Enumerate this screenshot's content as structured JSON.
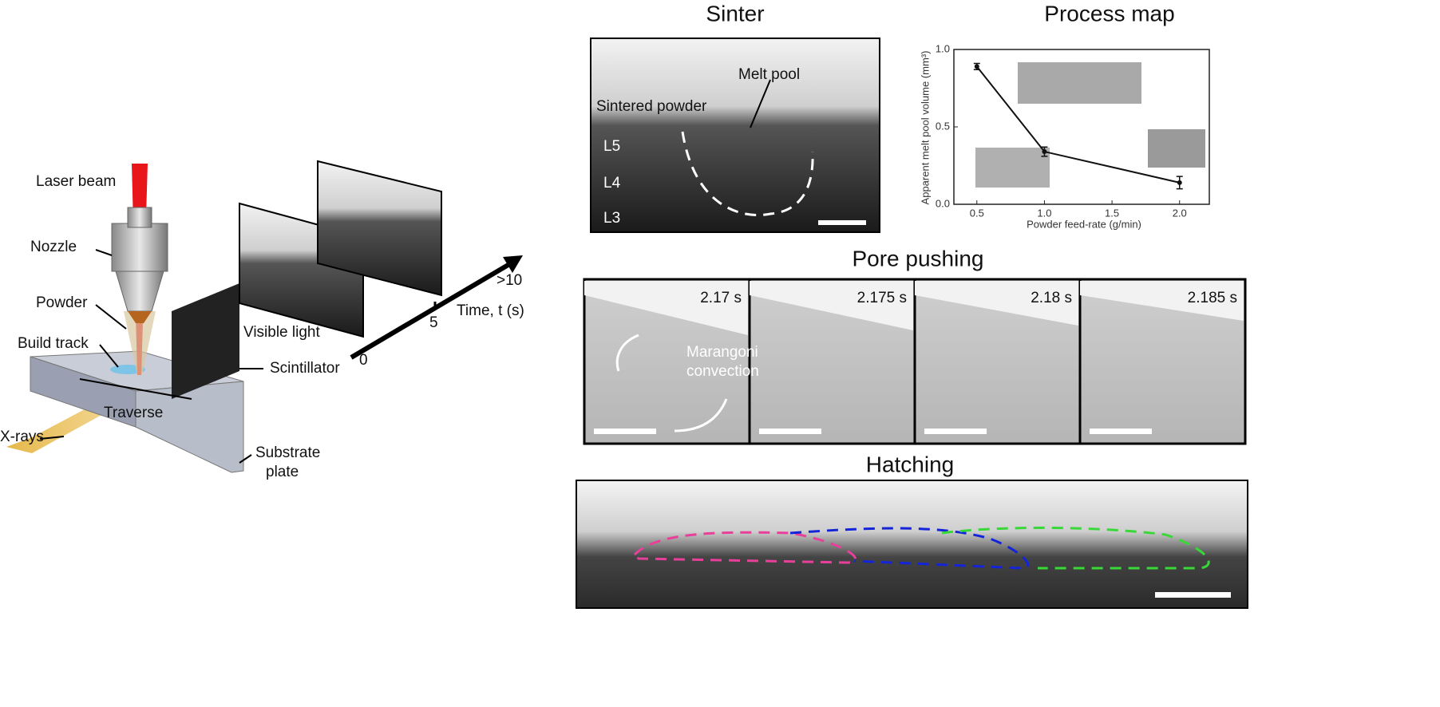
{
  "schematic": {
    "laser": "Laser beam",
    "nozzle": "Nozzle",
    "powder": "Powder",
    "build_track": "Build track",
    "xrays": "X-rays",
    "traverse": "Traverse",
    "substrate": [
      "Substrate",
      "plate"
    ],
    "visible": "Visible light",
    "scintillator": "Scintillator",
    "time_label": "Time, t (s)",
    "time_ticks": [
      "0",
      "5",
      ">10"
    ]
  },
  "sinter": {
    "title": "Sinter",
    "melt_pool": "Melt pool",
    "sintered": "Sintered powder",
    "layers": [
      "L5",
      "L4",
      "L3"
    ]
  },
  "pore_pushing": {
    "title": "Pore pushing",
    "times": [
      "2.17 s",
      "2.175 s",
      "2.18 s",
      "2.185 s"
    ],
    "annotation": [
      "Marangoni",
      "convection"
    ]
  },
  "hatching": {
    "title": "Hatching"
  },
  "chart_data": {
    "type": "line",
    "title": "Process map",
    "x_label": "Powder feed-rate (g/min)",
    "y_label": "Apparent melt pool volume (mm³)",
    "x": [
      0.5,
      1.0,
      2.0
    ],
    "series": [
      {
        "color": "#111111",
        "values": [
          0.89,
          0.34,
          0.14
        ],
        "errors": [
          0.02,
          0.03,
          0.04
        ]
      }
    ],
    "xlim": [
      0.33,
      2.22
    ],
    "ylim": [
      0,
      1
    ],
    "xticks": [
      0.5,
      {
        "value": 1,
        "label": "1.0"
      },
      1.5,
      {
        "value": 2,
        "label": "2.0"
      }
    ],
    "yticks": [
      {
        "value": 0,
        "label": "0.0"
      },
      0.5,
      {
        "value": 1,
        "label": "1.0"
      }
    ]
  }
}
